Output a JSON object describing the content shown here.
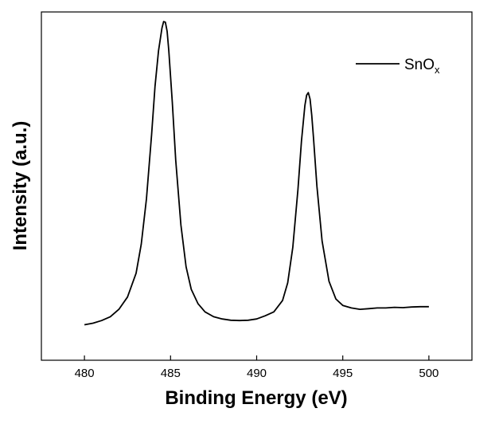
{
  "chart_data": {
    "type": "line",
    "title": "",
    "xlabel": "Binding Energy (eV)",
    "ylabel": "Intensity (a.u.)",
    "xlim": [
      477.5,
      502.5
    ],
    "ylim": [
      0,
      1.08
    ],
    "xticks": [
      480,
      485,
      490,
      495,
      500
    ],
    "yticks": [],
    "grid": false,
    "legend": {
      "position": "top-right",
      "frame": false
    },
    "series": [
      {
        "name": "SnOx",
        "name_base": "SnO",
        "name_sub": "x",
        "color": "#000000",
        "x": [
          480.0,
          480.5,
          481.0,
          481.5,
          482.0,
          482.5,
          483.0,
          483.3,
          483.6,
          483.9,
          484.1,
          484.3,
          484.5,
          484.6,
          484.7,
          484.8,
          484.9,
          485.1,
          485.3,
          485.6,
          485.9,
          486.2,
          486.6,
          487.0,
          487.5,
          488.0,
          488.5,
          489.0,
          489.5,
          490.0,
          490.5,
          491.0,
          491.5,
          491.8,
          492.1,
          492.4,
          492.6,
          492.8,
          492.9,
          493.0,
          493.1,
          493.2,
          493.3,
          493.5,
          493.8,
          494.2,
          494.6,
          495.0,
          495.5,
          496.0,
          496.5,
          497.0,
          497.5,
          498.0,
          498.5,
          499.0,
          499.5,
          500.0
        ],
        "y": [
          0.11,
          0.115,
          0.123,
          0.135,
          0.158,
          0.196,
          0.27,
          0.36,
          0.5,
          0.7,
          0.85,
          0.96,
          1.03,
          1.05,
          1.048,
          1.02,
          0.96,
          0.8,
          0.62,
          0.42,
          0.29,
          0.22,
          0.175,
          0.15,
          0.135,
          0.128,
          0.124,
          0.123,
          0.124,
          0.128,
          0.138,
          0.15,
          0.185,
          0.24,
          0.35,
          0.53,
          0.68,
          0.79,
          0.822,
          0.83,
          0.81,
          0.76,
          0.69,
          0.54,
          0.37,
          0.245,
          0.19,
          0.17,
          0.162,
          0.158,
          0.16,
          0.162,
          0.162,
          0.164,
          0.163,
          0.165,
          0.166,
          0.166
        ]
      }
    ]
  }
}
